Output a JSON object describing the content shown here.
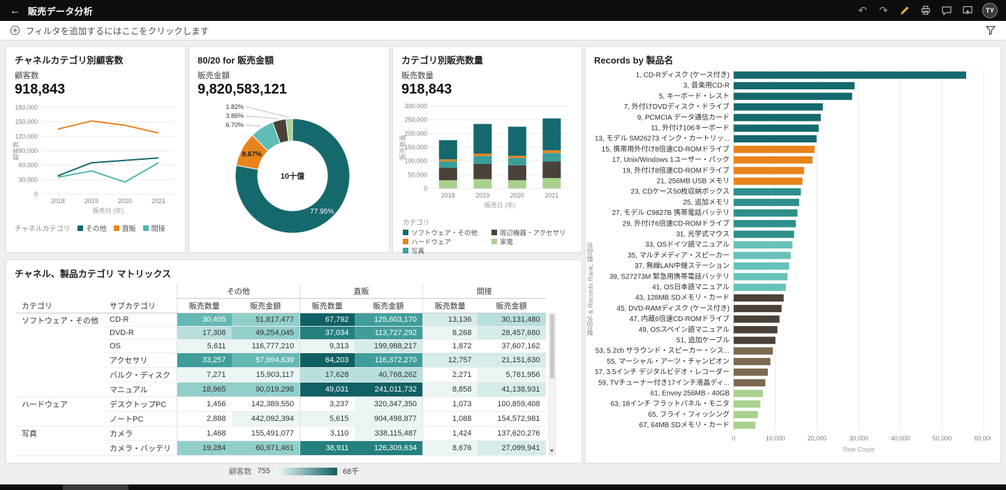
{
  "topbar": {
    "title": "販売データ分析",
    "avatar_initials": "TY"
  },
  "filterbar": {
    "prompt": "フィルタを追加するにはここをクリックします"
  },
  "canvas": {
    "panel1": {
      "title": "チャネルカテゴリ別顧客数",
      "kpi_label": "顧客数",
      "kpi_value": "918,843"
    },
    "panel2": {
      "title": "80/20 for 販売金額",
      "kpi_label": "販売金額",
      "kpi_value": "9,820,583,121"
    },
    "panel3": {
      "title": "カテゴリ別販売数量",
      "kpi_label": "販売数量",
      "kpi_value": "918,843"
    },
    "panel4": {
      "title": "Records by 製品名"
    },
    "panel5": {
      "title": "チャネル、製品カテゴリ マトリックス"
    }
  },
  "chart_data": [
    {
      "id": "customers-by-channel",
      "type": "line",
      "title": "チャネルカテゴリ別顧客数",
      "x": [
        "2018",
        "2019",
        "2020",
        "2021"
      ],
      "xlabel": "販売日 (年)",
      "ylabel": "顧客数",
      "ylim": [
        0,
        180000
      ],
      "yticks": [
        "0",
        "30,000",
        "60,000",
        "90,000",
        "120,000",
        "150,000",
        "180,000"
      ],
      "legend_title": "チャネルカテゴリ",
      "series": [
        {
          "name": "その他",
          "color": "#15696d",
          "values": [
            38000,
            65000,
            70000,
            75000
          ]
        },
        {
          "name": "直販",
          "color": "#e8841c",
          "values": [
            135000,
            152000,
            143000,
            127000
          ]
        },
        {
          "name": "間接",
          "color": "#4cb8b0",
          "values": [
            35000,
            48000,
            25000,
            65000
          ]
        }
      ]
    },
    {
      "id": "pareto-sales-amount",
      "type": "pie",
      "title": "80/20 for 販売金額",
      "center_label": "10十億",
      "slices": [
        {
          "label": "77.95%",
          "value": 77.95,
          "color": "#15696d",
          "label_style": "inside-light"
        },
        {
          "label": "9.67%",
          "value": 9.67,
          "color": "#e8841c",
          "label_style": "inside-dark"
        },
        {
          "label": "6.70%",
          "value": 6.7,
          "color": "#5fbdb5",
          "label_style": "callout"
        },
        {
          "label": "3.86%",
          "value": 3.86,
          "color": "#4a4139",
          "label_style": "callout"
        },
        {
          "label": "1.82%",
          "value": 1.82,
          "color": "#a9d18e",
          "label_style": "callout"
        }
      ]
    },
    {
      "id": "quantity-by-category",
      "type": "bar",
      "stacked": true,
      "x": [
        "2018",
        "2019",
        "2020",
        "2021"
      ],
      "xlabel": "販売日 (年)",
      "ylabel": "販売数量",
      "ylim": [
        0,
        300000
      ],
      "yticks": [
        "0",
        "50,000",
        "100,000",
        "150,000",
        "200,000",
        "250,000",
        "300,000"
      ],
      "legend_title": "カテゴリ",
      "legend_order": [
        "ソフトウェア・その他",
        "ハードウェア",
        "写真",
        "周辺機器・アクセサリ",
        "家電"
      ],
      "series": [
        {
          "name": "家電",
          "color": "#a9d18e",
          "values": [
            30000,
            34000,
            30000,
            38000
          ]
        },
        {
          "name": "周辺機器・アクセサリ",
          "color": "#4a4139",
          "values": [
            45000,
            55000,
            54000,
            60000
          ]
        },
        {
          "name": "写真",
          "color": "#3a9e99",
          "values": [
            24000,
            29000,
            27000,
            31000
          ]
        },
        {
          "name": "ハードウェア",
          "color": "#e8841c",
          "values": [
            7000,
            9000,
            8000,
            10000
          ]
        },
        {
          "name": "ソフトウェア・その他",
          "color": "#15696d",
          "values": [
            70000,
            108000,
            106000,
            116000
          ]
        }
      ]
    },
    {
      "id": "records-by-product",
      "type": "bar",
      "orientation": "horizontal",
      "title": "Records by 製品名",
      "xlabel": "Row Count",
      "ylabel": "製品名 & Records Rank, 製品名",
      "xlim": [
        0,
        60000
      ],
      "xticks": [
        "0",
        "10,000",
        "20,000",
        "30,000",
        "40,000",
        "50,000",
        "60,000"
      ],
      "bars": [
        {
          "label": "1, CD-Rディスク (ケース付き)",
          "value": 55800,
          "color": "#15696d"
        },
        {
          "label": "3, 音楽用CD-R",
          "value": 29000,
          "color": "#15696d"
        },
        {
          "label": "5, キーボード・レスト",
          "value": 28400,
          "color": "#15696d"
        },
        {
          "label": "7, 外付けDVDディスク・ドライブ",
          "value": 21400,
          "color": "#15696d"
        },
        {
          "label": "9, PCMCIA データ通信カード",
          "value": 20900,
          "color": "#15696d"
        },
        {
          "label": "11, 外付け106キーボード",
          "value": 20400,
          "color": "#15696d"
        },
        {
          "label": "13, モデル SM26273 インク・カートリッ...",
          "value": 19900,
          "color": "#15696d"
        },
        {
          "label": "15, 携帯用外付け8倍速CD-ROMドライブ",
          "value": 19400,
          "color": "#e8841c"
        },
        {
          "label": "17, Unix/Windows 1ユーザー・パック",
          "value": 18900,
          "color": "#e8841c"
        },
        {
          "label": "19, 外付け8倍速CD-ROMドライブ",
          "value": 16900,
          "color": "#e8841c"
        },
        {
          "label": "21, 256MB USB メモリ",
          "value": 16500,
          "color": "#e8841c"
        },
        {
          "label": "23, CDケース50枚収納ボックス",
          "value": 16100,
          "color": "#2e8f8b"
        },
        {
          "label": "25, 追加メモリ",
          "value": 15700,
          "color": "#2e8f8b"
        },
        {
          "label": "27, モデル C9827B 携帯電話バッテリ",
          "value": 15300,
          "color": "#2e8f8b"
        },
        {
          "label": "29, 外付け6倍速CD-ROMドライブ",
          "value": 14900,
          "color": "#2e8f8b"
        },
        {
          "label": "31, 光学式マウス",
          "value": 14500,
          "color": "#2e8f8b"
        },
        {
          "label": "33, OSドイツ語マニュアル",
          "value": 14100,
          "color": "#66c2ba"
        },
        {
          "label": "35, マルチメディア・スピーカー",
          "value": 13700,
          "color": "#66c2ba"
        },
        {
          "label": "37, 無線LAN中継ステーション",
          "value": 13300,
          "color": "#66c2ba"
        },
        {
          "label": "39, S27273M 緊急用携帯電話バッテリ",
          "value": 12900,
          "color": "#66c2ba"
        },
        {
          "label": "41, OS日本語マニュアル",
          "value": 12500,
          "color": "#66c2ba"
        },
        {
          "label": "43, 128MB SDメモリ・カード",
          "value": 12000,
          "color": "#4a4139"
        },
        {
          "label": "45, DVD-RAMディスク (ケース付き)",
          "value": 11500,
          "color": "#4a4139"
        },
        {
          "label": "47, 内蔵6倍速CD-ROMドライブ",
          "value": 11000,
          "color": "#4a4139"
        },
        {
          "label": "49, OSスペイン語マニュアル",
          "value": 10500,
          "color": "#4a4139"
        },
        {
          "label": "51, 追加ケーブル",
          "value": 10000,
          "color": "#4a4139"
        },
        {
          "label": "53, 5.2ch サラウンド・スピーカー・シス...",
          "value": 9400,
          "color": "#7a6a50"
        },
        {
          "label": "55, マーシャル・アーツ・チャンピオン",
          "value": 8800,
          "color": "#7a6a50"
        },
        {
          "label": "57, 3.5インチ デジタルビデオ・レコーダー",
          "value": 8200,
          "color": "#7a6a50"
        },
        {
          "label": "59, TVチューナー付き17インチ液晶ディ...",
          "value": 7600,
          "color": "#7a6a50"
        },
        {
          "label": "61, Envoy 256MB - 40GB",
          "value": 7000,
          "color": "#a9d18e"
        },
        {
          "label": "63, 18インチ フラットパネル・モニタ",
          "value": 6400,
          "color": "#a9d18e"
        },
        {
          "label": "65, フライ・フィッシング",
          "value": 5800,
          "color": "#a9d18e"
        },
        {
          "label": "67, 64MB SDメモリ・カード",
          "value": 5200,
          "color": "#a9d18e"
        }
      ]
    },
    {
      "id": "channel-category-matrix",
      "type": "table",
      "title": "チャネル、製品カテゴリ マトリックス",
      "col_groups": [
        "その他",
        "直販",
        "間接"
      ],
      "measure_cols": [
        "販売数量",
        "販売金額"
      ],
      "dim_cols": [
        "カテゴリ",
        "サブカテゴリ"
      ],
      "heat_palette": [
        "#ffffff",
        "#eaf5f4",
        "#d6ecea",
        "#b8dfdc",
        "#92cfca",
        "#65b8b3",
        "#3f9e9b",
        "#23807f",
        "#0f6064"
      ],
      "rows": [
        {
          "category": "ソフトウェア・その他",
          "span": 6,
          "sub": "CD-R",
          "cells": [
            [
              "30,405",
              5
            ],
            [
              "51,817,477",
              4
            ],
            [
              "67,792",
              8
            ],
            [
              "125,603,170",
              6
            ],
            [
              "13,136",
              2
            ],
            [
              "30,131,480",
              3
            ]
          ]
        },
        {
          "sub": "DVD-R",
          "cells": [
            [
              "17,308",
              3
            ],
            [
              "49,254,045",
              4
            ],
            [
              "37,034",
              7
            ],
            [
              "113,727,292",
              6
            ],
            [
              "8,268",
              1
            ],
            [
              "28,457,680",
              2
            ]
          ]
        },
        {
          "sub": "OS",
          "cells": [
            [
              "5,611",
              1
            ],
            [
              "116,777,210",
              1
            ],
            [
              "9,313",
              1
            ],
            [
              "199,988,217",
              2
            ],
            [
              "1,872",
              0
            ],
            [
              "37,607,162",
              0
            ]
          ]
        },
        {
          "sub": "アクセサリ",
          "cells": [
            [
              "33,257",
              6
            ],
            [
              "57,994,639",
              5
            ],
            [
              "64,203",
              8
            ],
            [
              "116,372,270",
              6
            ],
            [
              "12,757",
              2
            ],
            [
              "21,151,630",
              2
            ]
          ]
        },
        {
          "sub": "バルク・ディスク",
          "cells": [
            [
              "7,271",
              1
            ],
            [
              "15,903,117",
              1
            ],
            [
              "17,628",
              3
            ],
            [
              "40,768,262",
              3
            ],
            [
              "2,271",
              0
            ],
            [
              "5,761,956",
              1
            ]
          ]
        },
        {
          "sub": "マニュアル",
          "cells": [
            [
              "18,965",
              4
            ],
            [
              "90,019,298",
              4
            ],
            [
              "49,031",
              8
            ],
            [
              "241,011,732",
              8
            ],
            [
              "8,858",
              1
            ],
            [
              "41,138,931",
              2
            ]
          ]
        },
        {
          "category": "ハードウェア",
          "span": 2,
          "sub": "デスクトップPC",
          "cells": [
            [
              "1,456",
              0
            ],
            [
              "142,389,550",
              0
            ],
            [
              "3,237",
              0
            ],
            [
              "320,347,350",
              1
            ],
            [
              "1,073",
              0
            ],
            [
              "100,859,408",
              0
            ]
          ]
        },
        {
          "sub": "ノートPC",
          "cells": [
            [
              "2,888",
              0
            ],
            [
              "442,092,394",
              1
            ],
            [
              "5,615",
              1
            ],
            [
              "904,498,877",
              1
            ],
            [
              "1,088",
              0
            ],
            [
              "154,572,981",
              0
            ]
          ]
        },
        {
          "category": "写真",
          "span": 2,
          "sub": "カメラ",
          "cells": [
            [
              "1,468",
              0
            ],
            [
              "155,491,077",
              0
            ],
            [
              "3,110",
              0
            ],
            [
              "338,115,487",
              1
            ],
            [
              "1,424",
              0
            ],
            [
              "137,620,276",
              0
            ]
          ]
        },
        {
          "sub": "カメラ・バッテリ",
          "cells": [
            [
              "19,284",
              4
            ],
            [
              "60,971,461",
              4
            ],
            [
              "38,911",
              7
            ],
            [
              "126,309,634",
              7
            ],
            [
              "8,676",
              1
            ],
            [
              "27,099,941",
              2
            ]
          ]
        }
      ],
      "legend": {
        "label": "顧客数",
        "min": "755",
        "max": "68千"
      }
    }
  ]
}
